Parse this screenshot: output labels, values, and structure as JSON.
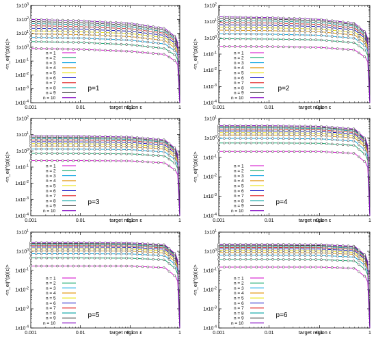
{
  "colors": {
    "series": [
      "#d000c8",
      "#00a060",
      "#00a0e0",
      "#e09000",
      "#e8e000",
      "#0000c0",
      "#e02020",
      "#00a0a0",
      "#303030",
      "#8000c0"
    ],
    "axis": "#000000",
    "background": "#ffffff"
  },
  "chart_data": [
    {
      "type": "line",
      "title": "p=1",
      "xlabel": "target region ε",
      "ylabel": "<n_eij^(p)(ε)>",
      "xscale": "log",
      "yscale": "log",
      "xlim": [
        0.001,
        1
      ],
      "ylim": [
        0.0001,
        1000
      ],
      "x_ticks": [
        "0.001",
        "0.01",
        "0.1",
        "1"
      ],
      "y_ticks": [
        "1x10-4",
        "1x10-3",
        "1x10-2",
        "1x10-1",
        "1x100",
        "1x101",
        "1x102",
        "1x103"
      ],
      "legend": [
        "n = 1",
        "n = 2",
        "n = 3",
        "n = 4",
        "n = 5",
        "n = 6",
        "n = 7",
        "n = 8",
        "n = 9",
        "n = 10"
      ],
      "legend_position": "bottom-left",
      "x": [
        0.001,
        0.01,
        0.1,
        0.5,
        0.9,
        1
      ],
      "series": [
        {
          "name": "n = 1",
          "values": [
            0.8,
            0.7,
            0.5,
            0.3,
            0.08,
            0.0001
          ]
        },
        {
          "name": "n = 2",
          "values": [
            2.5,
            2.2,
            1.5,
            0.8,
            0.2,
            0.0001
          ]
        },
        {
          "name": "n = 3",
          "values": [
            5,
            4.5,
            3.2,
            1.7,
            0.4,
            0.0001
          ]
        },
        {
          "name": "n = 4",
          "values": [
            9,
            8,
            5.8,
            3,
            0.65,
            0.0001
          ]
        },
        {
          "name": "n = 5",
          "values": [
            15,
            13,
            9.5,
            4.8,
            1,
            0.0001
          ]
        },
        {
          "name": "n = 6",
          "values": [
            23,
            20,
            14,
            7,
            1.4,
            0.0001
          ]
        },
        {
          "name": "n = 7",
          "values": [
            35,
            30,
            21,
            10,
            2,
            0.0001
          ]
        },
        {
          "name": "n = 8",
          "values": [
            50,
            42,
            29,
            13,
            2.6,
            0.0001
          ]
        },
        {
          "name": "n = 9",
          "values": [
            70,
            58,
            39,
            17,
            3.3,
            0.0001
          ]
        },
        {
          "name": "n = 10",
          "values": [
            100,
            80,
            52,
            22,
            4.2,
            0.0001
          ]
        }
      ]
    },
    {
      "type": "line",
      "title": "p=2",
      "xlabel": "target region ε",
      "ylabel": "<n_eij^(p)(ε)>",
      "xscale": "log",
      "yscale": "log",
      "xlim": [
        0.001,
        1
      ],
      "ylim": [
        0.0001,
        100
      ],
      "x_ticks": [
        "0.001",
        "0.01",
        "0.1",
        "1"
      ],
      "y_ticks": [
        "1x10-4",
        "1x10-3",
        "1x10-2",
        "1x10-1",
        "1x100",
        "1x101",
        "1x102"
      ],
      "legend": [
        "n = 1",
        "n = 2",
        "n = 3",
        "n = 4",
        "n = 5",
        "n = 6",
        "n = 7",
        "n = 8",
        "n = 9",
        "n = 10"
      ],
      "legend_position": "bottom-left",
      "x": [
        0.001,
        0.01,
        0.1,
        0.5,
        0.9,
        1
      ],
      "series": [
        {
          "name": "n = 1",
          "values": [
            0.3,
            0.29,
            0.26,
            0.18,
            0.05,
            0.0001
          ]
        },
        {
          "name": "n = 2",
          "values": [
            0.9,
            0.85,
            0.75,
            0.5,
            0.13,
            0.0001
          ]
        },
        {
          "name": "n = 3",
          "values": [
            1.8,
            1.7,
            1.45,
            0.95,
            0.24,
            0.0001
          ]
        },
        {
          "name": "n = 4",
          "values": [
            3,
            2.8,
            2.4,
            1.5,
            0.37,
            0.0001
          ]
        },
        {
          "name": "n = 5",
          "values": [
            4.5,
            4.2,
            3.5,
            2.2,
            0.52,
            0.0001
          ]
        },
        {
          "name": "n = 6",
          "values": [
            6.5,
            6,
            5,
            3.1,
            0.7,
            0.0001
          ]
        },
        {
          "name": "n = 7",
          "values": [
            9,
            8.3,
            6.8,
            4.1,
            0.9,
            0.0001
          ]
        },
        {
          "name": "n = 8",
          "values": [
            12,
            11,
            9,
            5.3,
            1.1,
            0.0001
          ]
        },
        {
          "name": "n = 9",
          "values": [
            16,
            14.5,
            11.5,
            6.6,
            1.4,
            0.0001
          ]
        },
        {
          "name": "n = 10",
          "values": [
            20,
            18,
            14,
            8,
            1.7,
            0.0001
          ]
        }
      ]
    },
    {
      "type": "line",
      "title": "p=3",
      "xlabel": "target region ε",
      "ylabel": "<n_eij^(p)(ε)>",
      "xscale": "log",
      "yscale": "log",
      "xlim": [
        0.001,
        1
      ],
      "ylim": [
        0.0001,
        100
      ],
      "x_ticks": [
        "0.001",
        "0.01",
        "0.1",
        "1"
      ],
      "y_ticks": [
        "1x10-4",
        "1x10-3",
        "1x10-2",
        "1x10-1",
        "1x100",
        "1x101",
        "1x102"
      ],
      "legend": [
        "n = 1",
        "n = 2",
        "n = 3",
        "n = 4",
        "n = 5",
        "n = 6",
        "n = 7",
        "n = 8",
        "n = 9",
        "n = 10"
      ],
      "legend_position": "bottom-left",
      "x": [
        0.001,
        0.01,
        0.1,
        0.5,
        0.9,
        1
      ],
      "series": [
        {
          "name": "n = 1",
          "values": [
            0.25,
            0.25,
            0.24,
            0.18,
            0.05,
            0.0001
          ]
        },
        {
          "name": "n = 2",
          "values": [
            0.7,
            0.69,
            0.65,
            0.48,
            0.13,
            0.0001
          ]
        },
        {
          "name": "n = 3",
          "values": [
            1.3,
            1.28,
            1.2,
            0.85,
            0.22,
            0.0001
          ]
        },
        {
          "name": "n = 4",
          "values": [
            2,
            1.95,
            1.8,
            1.3,
            0.32,
            0.0001
          ]
        },
        {
          "name": "n = 5",
          "values": [
            2.8,
            2.75,
            2.5,
            1.75,
            0.43,
            0.0001
          ]
        },
        {
          "name": "n = 6",
          "values": [
            3.7,
            3.6,
            3.3,
            2.3,
            0.55,
            0.0001
          ]
        },
        {
          "name": "n = 7",
          "values": [
            4.7,
            4.6,
            4.2,
            2.9,
            0.68,
            0.0001
          ]
        },
        {
          "name": "n = 8",
          "values": [
            5.8,
            5.7,
            5.1,
            3.5,
            0.82,
            0.0001
          ]
        },
        {
          "name": "n = 9",
          "values": [
            7,
            6.8,
            6.1,
            4.1,
            0.96,
            0.0001
          ]
        },
        {
          "name": "n = 10",
          "values": [
            8.3,
            8.1,
            7.2,
            4.8,
            1.1,
            0.0001
          ]
        }
      ]
    },
    {
      "type": "line",
      "title": "p=4",
      "xlabel": "target region ε",
      "ylabel": "<n_eij^(p)(ε)>",
      "xscale": "log",
      "yscale": "log",
      "xlim": [
        0.001,
        1
      ],
      "ylim": [
        0.0001,
        10
      ],
      "x_ticks": [
        "0.001",
        "0.01",
        "0.1",
        "1"
      ],
      "y_ticks": [
        "1x10-4",
        "1x10-3",
        "1x10-2",
        "1x10-1",
        "1x100",
        "1x101"
      ],
      "legend": [
        "n = 1",
        "n = 2",
        "n = 3",
        "n = 4",
        "n = 5",
        "n = 6",
        "n = 7",
        "n = 8",
        "n = 9",
        "n = 10"
      ],
      "legend_position": "bottom-left",
      "x": [
        0.001,
        0.01,
        0.1,
        0.5,
        0.9,
        1
      ],
      "series": [
        {
          "name": "n = 1",
          "values": [
            0.2,
            0.2,
            0.2,
            0.16,
            0.045,
            0.0001
          ]
        },
        {
          "name": "n = 2",
          "values": [
            0.55,
            0.55,
            0.53,
            0.41,
            0.11,
            0.0001
          ]
        },
        {
          "name": "n = 3",
          "values": [
            0.95,
            0.95,
            0.9,
            0.69,
            0.18,
            0.0001
          ]
        },
        {
          "name": "n = 4",
          "values": [
            1.4,
            1.4,
            1.33,
            1,
            0.26,
            0.0001
          ]
        },
        {
          "name": "n = 5",
          "values": [
            1.85,
            1.84,
            1.75,
            1.3,
            0.33,
            0.0001
          ]
        },
        {
          "name": "n = 6",
          "values": [
            2.3,
            2.28,
            2.15,
            1.6,
            0.4,
            0.0001
          ]
        },
        {
          "name": "n = 7",
          "values": [
            2.8,
            2.77,
            2.6,
            1.9,
            0.48,
            0.0001
          ]
        },
        {
          "name": "n = 8",
          "values": [
            3.3,
            3.26,
            3.05,
            2.25,
            0.56,
            0.0001
          ]
        },
        {
          "name": "n = 9",
          "values": [
            3.8,
            3.75,
            3.5,
            2.55,
            0.63,
            0.0001
          ]
        },
        {
          "name": "n = 10",
          "values": [
            4.3,
            4.25,
            3.95,
            2.9,
            0.71,
            0.0001
          ]
        }
      ]
    },
    {
      "type": "line",
      "title": "p=5",
      "xlabel": "target region ε",
      "ylabel": "<n_eij^(p)(ε)>",
      "xscale": "log",
      "yscale": "log",
      "xlim": [
        0.001,
        1
      ],
      "ylim": [
        0.0001,
        10
      ],
      "x_ticks": [
        "0.001",
        "0.01",
        "0.1",
        "1"
      ],
      "y_ticks": [
        "1x10-4",
        "1x10-3",
        "1x10-2",
        "1x10-1",
        "1x100",
        "1x101"
      ],
      "legend": [
        "n = 1",
        "n = 2",
        "n = 3",
        "n = 4",
        "n = 5",
        "n = 6",
        "n = 7",
        "n = 8",
        "n = 9",
        "n = 10"
      ],
      "legend_position": "bottom-left",
      "x": [
        0.001,
        0.01,
        0.1,
        0.5,
        0.9,
        1
      ],
      "series": [
        {
          "name": "n = 1",
          "values": [
            0.17,
            0.17,
            0.17,
            0.14,
            0.04,
            0.0001
          ]
        },
        {
          "name": "n = 2",
          "values": [
            0.45,
            0.45,
            0.44,
            0.36,
            0.1,
            0.0001
          ]
        },
        {
          "name": "n = 3",
          "values": [
            0.75,
            0.75,
            0.73,
            0.59,
            0.16,
            0.0001
          ]
        },
        {
          "name": "n = 4",
          "values": [
            1.05,
            1.05,
            1.02,
            0.82,
            0.22,
            0.0001
          ]
        },
        {
          "name": "n = 5",
          "values": [
            1.35,
            1.35,
            1.31,
            1.05,
            0.28,
            0.0001
          ]
        },
        {
          "name": "n = 6",
          "values": [
            1.65,
            1.65,
            1.6,
            1.28,
            0.34,
            0.0001
          ]
        },
        {
          "name": "n = 7",
          "values": [
            1.95,
            1.95,
            1.89,
            1.5,
            0.4,
            0.0001
          ]
        },
        {
          "name": "n = 8",
          "values": [
            2.25,
            2.25,
            2.18,
            1.73,
            0.46,
            0.0001
          ]
        },
        {
          "name": "n = 9",
          "values": [
            2.55,
            2.55,
            2.47,
            1.96,
            0.52,
            0.0001
          ]
        },
        {
          "name": "n = 10",
          "values": [
            2.85,
            2.85,
            2.75,
            2.18,
            0.58,
            0.0001
          ]
        }
      ]
    },
    {
      "type": "line",
      "title": "p=6",
      "xlabel": "target region ε",
      "ylabel": "<n_eij^(p)(ε)>",
      "xscale": "log",
      "yscale": "log",
      "xlim": [
        0.001,
        1
      ],
      "ylim": [
        0.0001,
        10
      ],
      "x_ticks": [
        "0.001",
        "0.01",
        "0.1",
        "1"
      ],
      "y_ticks": [
        "1x10-4",
        "1x10-3",
        "1x10-2",
        "1x10-1",
        "1x100",
        "1x101"
      ],
      "legend": [
        "n = 1",
        "n = 2",
        "n = 3",
        "n = 4",
        "n = 5",
        "n = 6",
        "n = 7",
        "n = 8",
        "n = 9",
        "n = 10"
      ],
      "legend_position": "bottom-left",
      "x": [
        0.001,
        0.01,
        0.1,
        0.5,
        0.9,
        1
      ],
      "series": [
        {
          "name": "n = 1",
          "values": [
            0.15,
            0.15,
            0.15,
            0.13,
            0.037,
            0.0001
          ]
        },
        {
          "name": "n = 2",
          "values": [
            0.38,
            0.38,
            0.37,
            0.31,
            0.09,
            0.0001
          ]
        },
        {
          "name": "n = 3",
          "values": [
            0.62,
            0.62,
            0.61,
            0.5,
            0.14,
            0.0001
          ]
        },
        {
          "name": "n = 4",
          "values": [
            0.86,
            0.86,
            0.84,
            0.69,
            0.19,
            0.0001
          ]
        },
        {
          "name": "n = 5",
          "values": [
            1.1,
            1.1,
            1.07,
            0.88,
            0.24,
            0.0001
          ]
        },
        {
          "name": "n = 6",
          "values": [
            1.34,
            1.34,
            1.31,
            1.07,
            0.29,
            0.0001
          ]
        },
        {
          "name": "n = 7",
          "values": [
            1.58,
            1.58,
            1.54,
            1.26,
            0.34,
            0.0001
          ]
        },
        {
          "name": "n = 8",
          "values": [
            1.82,
            1.82,
            1.77,
            1.45,
            0.39,
            0.0001
          ]
        },
        {
          "name": "n = 9",
          "values": [
            2.06,
            2.06,
            2.01,
            1.64,
            0.44,
            0.0001
          ]
        },
        {
          "name": "n = 10",
          "values": [
            2.3,
            2.3,
            2.24,
            1.83,
            0.49,
            0.0001
          ]
        }
      ]
    }
  ]
}
